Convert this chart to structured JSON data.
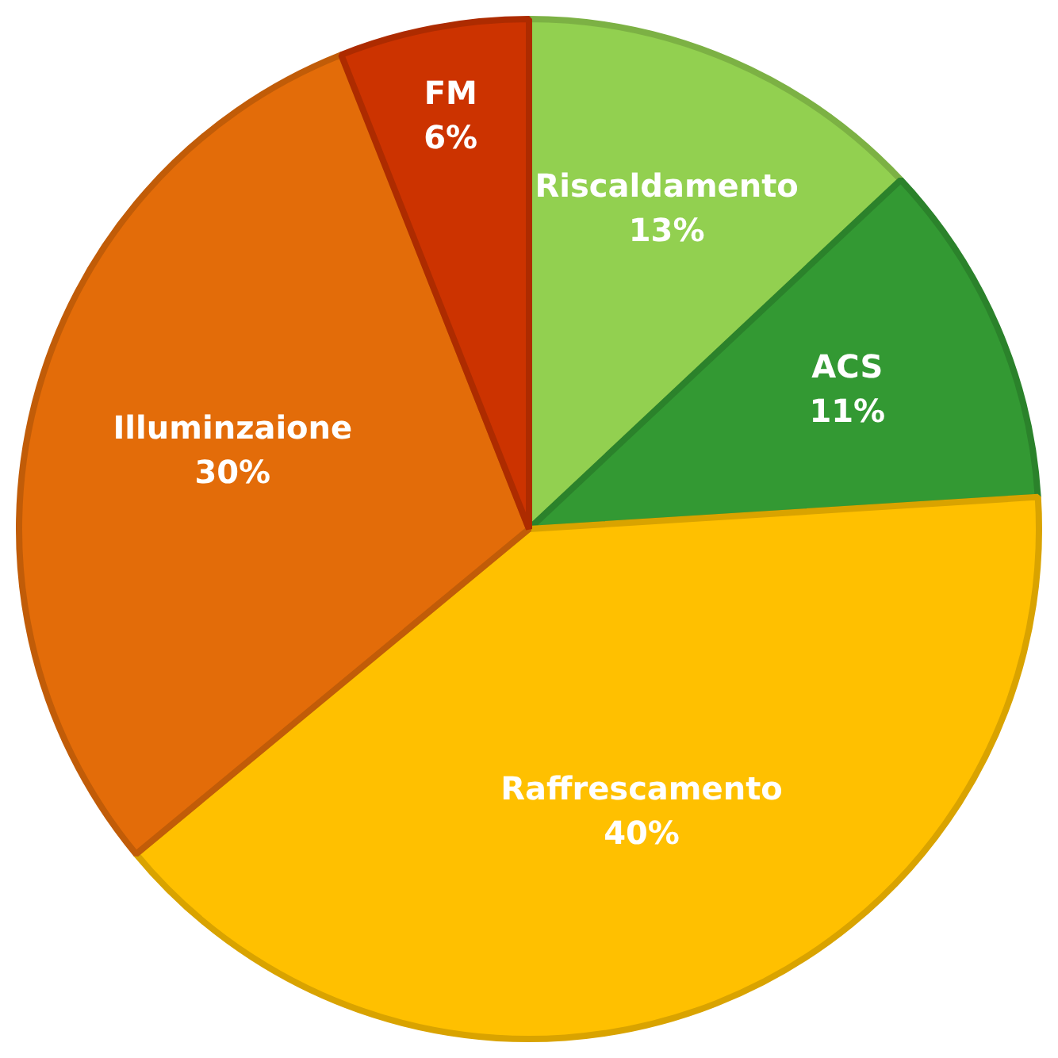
{
  "chart_data": {
    "type": "pie",
    "categories": [
      "Riscaldamento",
      "ACS",
      "Raffrescamento",
      "Illuminzaione",
      "FM"
    ],
    "values": [
      13,
      11,
      40,
      30,
      6
    ],
    "colors": [
      "#92d050",
      "#339933",
      "#ffc000",
      "#e36c09",
      "#cc3300"
    ],
    "value_labels": [
      "13%",
      "11%",
      "40%",
      "30%",
      "6%"
    ],
    "legend": false
  }
}
